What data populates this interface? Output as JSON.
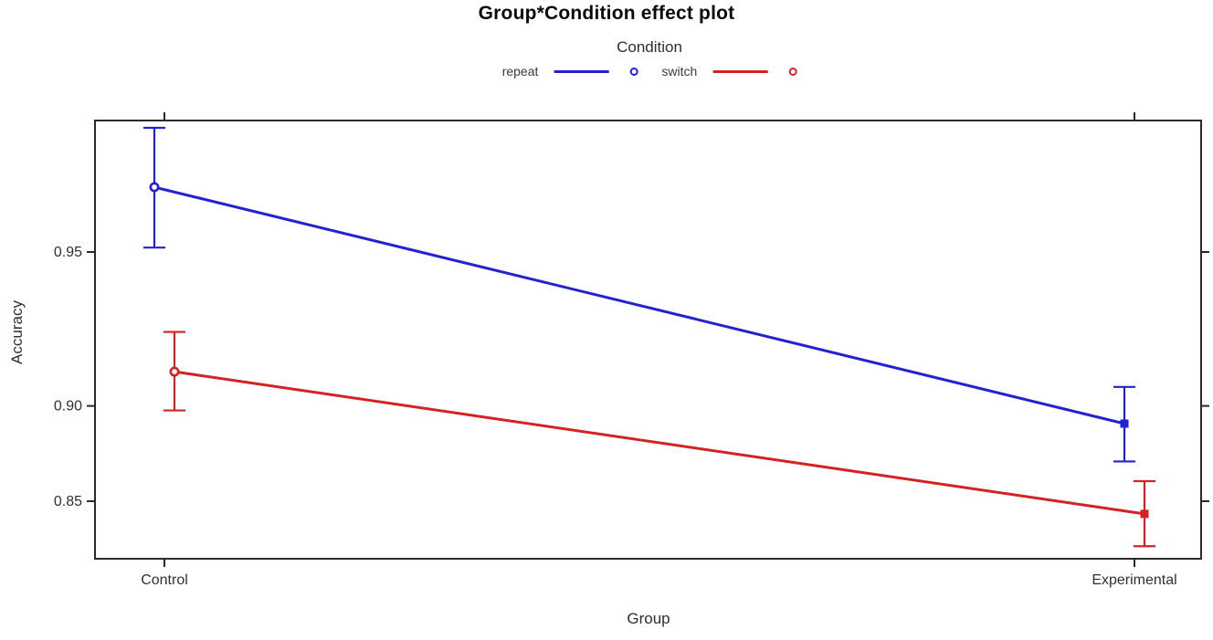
{
  "chart_data": {
    "type": "line",
    "title": "Group*Condition effect plot",
    "xlabel": "Group",
    "ylabel": "Accuracy",
    "x_categories": [
      "Control",
      "Experimental"
    ],
    "y_scale": "logit axis labeled with probabilities",
    "y_ticks": [
      0.95,
      0.9,
      0.85
    ],
    "y_range_approx": [
      0.81,
      0.973
    ],
    "grid": "off",
    "legend_position": "top-center",
    "legend_title": "Condition",
    "series": [
      {
        "name": "repeat",
        "color": "#2222d0",
        "values": [
          0.963,
          0.892
        ],
        "ci_low": [
          0.951,
          0.873
        ],
        "ci_high": [
          0.972,
          0.908
        ],
        "markers": [
          "open-circle",
          "filled-square"
        ]
      },
      {
        "name": "switch",
        "color": "#d42222",
        "values": [
          0.914,
          0.842
        ],
        "ci_low": [
          0.898,
          0.82
        ],
        "ci_high": [
          0.928,
          0.862
        ],
        "markers": [
          "open-circle",
          "filled-square"
        ]
      }
    ]
  },
  "title": "Group*Condition effect plot",
  "legend": {
    "title": "Condition",
    "entries": [
      {
        "label": "repeat",
        "color": "#2222d0",
        "marker": "open-circle"
      },
      {
        "label": "switch",
        "color": "#d42222",
        "marker": "open-circle"
      }
    ]
  },
  "axes": {
    "x": {
      "label": "Group",
      "tick_labels": [
        "Control",
        "Experimental"
      ]
    },
    "y": {
      "label": "Accuracy",
      "tick_labels": [
        "0.95",
        "0.90",
        "0.85"
      ]
    }
  },
  "colors": {
    "repeat_blue": "#2222d0",
    "switch_red": "#d42222",
    "frame": "#2a2a2a",
    "tick_text": "#303030"
  }
}
